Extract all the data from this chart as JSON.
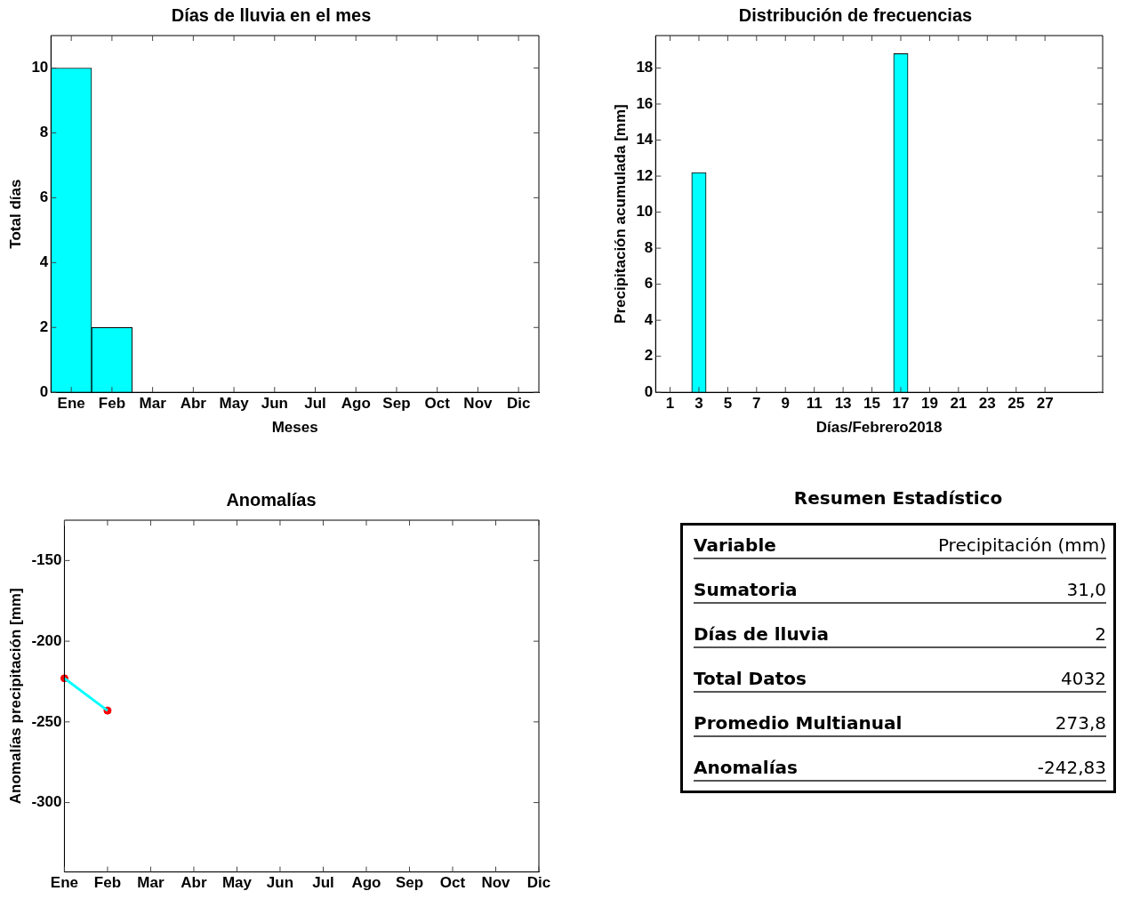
{
  "chart_data": [
    {
      "type": "bar",
      "title": "Días de lluvia en el mes",
      "xlabel": "Meses",
      "ylabel": "Total días",
      "categories": [
        "Ene",
        "Feb",
        "Mar",
        "Abr",
        "May",
        "Jun",
        "Jul",
        "Ago",
        "Sep",
        "Oct",
        "Nov",
        "Dic"
      ],
      "values": [
        10,
        2,
        null,
        null,
        null,
        null,
        null,
        null,
        null,
        null,
        null,
        null
      ],
      "color": "#00ffff",
      "ylim": [
        0,
        11
      ],
      "yticks": [
        0,
        2,
        4,
        6,
        8,
        10
      ]
    },
    {
      "type": "bar",
      "title": "Distribución de frecuencias",
      "xlabel": "Días/Febrero2018",
      "ylabel": "Precipitación acumulada [mm]",
      "x": [
        3,
        17
      ],
      "values": [
        12.2,
        18.8
      ],
      "color": "#00ffff",
      "xlim": [
        0,
        31
      ],
      "xticks": [
        1,
        3,
        5,
        7,
        9,
        11,
        13,
        15,
        17,
        19,
        21,
        23,
        25,
        27
      ],
      "ylim": [
        0,
        19.8
      ],
      "yticks": [
        0,
        2,
        4,
        6,
        8,
        10,
        12,
        14,
        16,
        18
      ]
    },
    {
      "type": "line",
      "title": "Anomalías",
      "ylabel": "Anomalías precipitación [mm]",
      "categories": [
        "Ene",
        "Feb",
        "Mar",
        "Abr",
        "May",
        "Jun",
        "Jul",
        "Ago",
        "Sep",
        "Oct",
        "Nov",
        "Dic"
      ],
      "series": [
        {
          "type": "line",
          "color": "#00ffff",
          "marker": "none",
          "values": [
            -223,
            -243,
            null,
            null,
            null,
            null,
            null,
            null,
            null,
            null,
            null,
            null
          ]
        },
        {
          "type": "scatter",
          "color": "#ff0000",
          "marker": "circle",
          "values": [
            -223,
            -243,
            null,
            null,
            null,
            null,
            null,
            null,
            null,
            null,
            null,
            null
          ]
        }
      ],
      "ylim": [
        -343,
        -125
      ],
      "yticks": [
        -300,
        -250,
        -200,
        -150
      ]
    },
    {
      "type": "other",
      "title": "Resumen Estadístico",
      "annotations": [
        "Variable",
        "Precipitación (mm)",
        "Sumatoria",
        "31,0",
        "Días de lluvia",
        "2",
        "Total Datos",
        "4032",
        "Promedio Multianual",
        "273,8",
        "Anomalías",
        "-242,83"
      ]
    }
  ]
}
